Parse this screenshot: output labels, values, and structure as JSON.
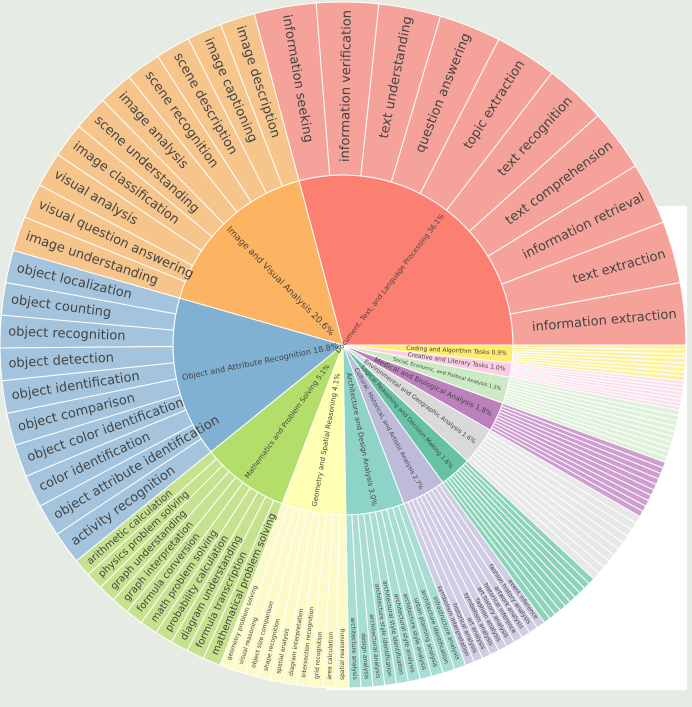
{
  "chart_data": {
    "type": "sunburst",
    "title": "",
    "center": [
      343,
      345
    ],
    "inner_radius": 170,
    "outer_radius": 343,
    "categories": [
      {
        "name": "Document, Text, and Language Processing",
        "pct": "36.1%",
        "color": "#fb8072",
        "light": "#f4a29a",
        "start": 0,
        "end": 105,
        "label_size": 7,
        "children": [
          "information extraction",
          "text extraction",
          "information retrieval",
          "text comprehension",
          "text recognition",
          "topic extraction",
          "question answering",
          "text understanding",
          "information verification",
          "information seeking"
        ]
      },
      {
        "name": "Image and Visual Analysis",
        "pct": "20.6%",
        "color": "#fdb462",
        "light": "#f6c58c",
        "start": 105,
        "end": 164,
        "label_size": 9,
        "children": [
          "image description",
          "image captioning",
          "scene description",
          "scene recognition",
          "image analysis",
          "scene understanding",
          "image classification",
          "visual analysis",
          "visual question answering",
          "image understanding"
        ]
      },
      {
        "name": "Object and Attribute Recognition",
        "pct": "18.8%",
        "color": "#80b1d3",
        "light": "#a3c4dc",
        "start": 164,
        "end": 219,
        "label_size": 8,
        "children": [
          "object localization",
          "object counting",
          "object recognition",
          "object detection",
          "object identification",
          "object comparison",
          "object color identification",
          "color identification",
          "object attribute identification",
          "activity recognition"
        ]
      },
      {
        "name": "Mathematics and Problem Solving",
        "pct": "5.1%",
        "color": "#b3de69",
        "light": "#c6e28f",
        "start": 219,
        "end": 249,
        "label_size": 7,
        "children": [
          "arithmetic calculation",
          "physics problem solving",
          "graph understanding",
          "graph interpretation",
          "formula conversion",
          "math problem solving",
          "probability calculation",
          "diagram understanding",
          "formula transcription",
          "mathematical problem solving"
        ]
      },
      {
        "name": "Geometry and Spatial Reasoning",
        "pct": "4.1%",
        "color": "#ffffb3",
        "light": "#fbfac8",
        "start": 249,
        "end": 271,
        "label_size": 7,
        "children": [
          "geometry problem solving",
          "visual reasoning",
          "object size comparison",
          "shape recognition",
          "spatial analysis",
          "diagram interpretation",
          "intersection recognition",
          "grid recognition",
          "area calculation",
          "spatial reasoning"
        ]
      },
      {
        "name": "Architecture and Design Analysis",
        "pct": "3.0%",
        "color": "#8dd3c7",
        "light": "#a7ddd3",
        "start": 271,
        "end": 291,
        "label_size": 7,
        "children": [
          "architecture analysis",
          "design analysis",
          "architectural analysis",
          "architecture style identification",
          "architectural style identification",
          "architectural style analysis",
          "architecture style analysis",
          "urban planning analysis",
          "architecture identification",
          "infrastructure analysis"
        ]
      },
      {
        "name": "Cultural, Historical, and Artistic Analysis",
        "pct": "2.7%",
        "color": "#bebada",
        "light": "#cfcce4",
        "start": 291,
        "end": 306,
        "label_size": 6,
        "children": [
          "symbolism interpretation",
          "historical analysis",
          "art analysis",
          "symbolism analysis",
          "fashion analysis",
          "art history analysis",
          "historical inference",
          "artwork analysis",
          "fashion history analysis",
          "event inference"
        ]
      },
      {
        "name": "Logical Reasoning and Decision Making",
        "pct": "1.6%",
        "color": "#66c2a5",
        "light": "#8dd3b9",
        "start": 306,
        "end": 317,
        "label_size": 6,
        "children": [
          "",
          "",
          "",
          "",
          "",
          "",
          "",
          "",
          "",
          ""
        ]
      },
      {
        "name": "Environmental and Geographic Analysis",
        "pct": "1.6%",
        "color": "#d9d9d9",
        "light": "#e8e8e8",
        "start": 317,
        "end": 330,
        "label_size": 6,
        "children": [
          "",
          "",
          "",
          "",
          "",
          "",
          "",
          "",
          "",
          ""
        ]
      },
      {
        "name": "Medical and Biological Analysis",
        "pct": "1.8%",
        "color": "#bc80bd",
        "light": "#cf9ed0",
        "start": 330,
        "end": 340,
        "label_size": 7,
        "children": [
          "",
          "",
          "",
          "",
          "",
          "",
          "",
          "",
          "",
          ""
        ]
      },
      {
        "name": "Social, Economic, and Political Analysis",
        "pct": "1.3%",
        "color": "#ccebc5",
        "light": "#dff1da",
        "start": 340,
        "end": 349,
        "label_size": 5,
        "children": [
          "",
          "",
          "",
          "",
          "",
          "",
          "",
          "",
          "",
          ""
        ]
      },
      {
        "name": "Creative and Literary Tasks",
        "pct": "1.0%",
        "color": "#fccde5",
        "light": "#fbe0ee",
        "start": 349,
        "end": 354,
        "label_size": 6,
        "children": [
          "",
          "",
          "",
          "",
          "",
          "",
          "",
          ""
        ]
      },
      {
        "name": "Coding and Algorithm Tasks",
        "pct": "0.9%",
        "color": "#ffed6f",
        "light": "#fbf2a6",
        "start": 354,
        "end": 360,
        "label_size": 6,
        "children": [
          "",
          "",
          "",
          "",
          "",
          "",
          "",
          ""
        ]
      }
    ]
  }
}
